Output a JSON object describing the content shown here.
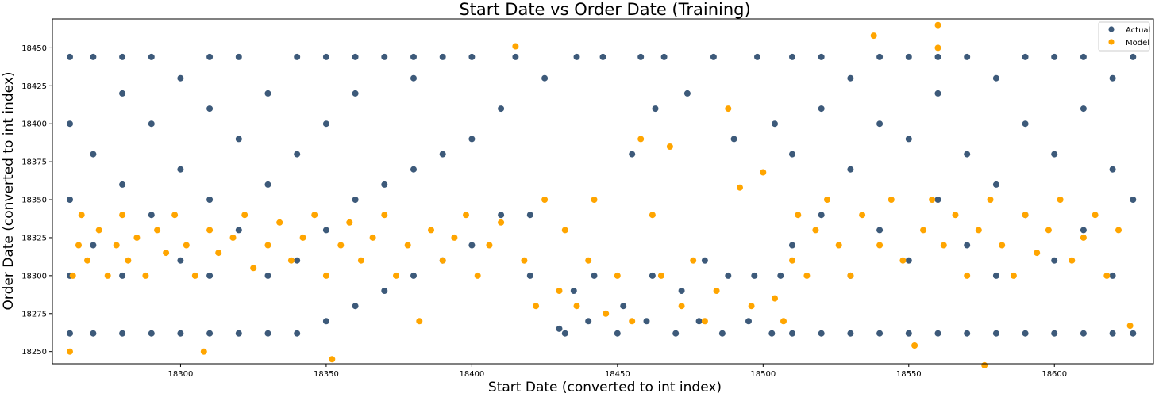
{
  "chart_data": {
    "type": "scatter",
    "title": "Start Date vs Order Date (Training)",
    "xlabel": "Start Date (converted to int index)",
    "ylabel": "Order Date (converted to int index)",
    "xlim": [
      18256,
      18634
    ],
    "ylim": [
      18242,
      18469
    ],
    "x_ticks": [
      18300,
      18350,
      18400,
      18450,
      18500,
      18550,
      18600
    ],
    "y_ticks": [
      18250,
      18275,
      18300,
      18325,
      18350,
      18375,
      18400,
      18425,
      18450
    ],
    "grid": false,
    "legend_position": "top-right",
    "series": [
      {
        "name": "Actual",
        "color": "#3d5a7a",
        "points": [
          [
            18262,
            18262
          ],
          [
            18262,
            18300
          ],
          [
            18262,
            18350
          ],
          [
            18262,
            18400
          ],
          [
            18262,
            18444
          ],
          [
            18270,
            18262
          ],
          [
            18270,
            18320
          ],
          [
            18270,
            18380
          ],
          [
            18270,
            18444
          ],
          [
            18280,
            18262
          ],
          [
            18280,
            18300
          ],
          [
            18280,
            18360
          ],
          [
            18280,
            18420
          ],
          [
            18280,
            18444
          ],
          [
            18290,
            18262
          ],
          [
            18290,
            18340
          ],
          [
            18290,
            18400
          ],
          [
            18290,
            18444
          ],
          [
            18300,
            18262
          ],
          [
            18300,
            18310
          ],
          [
            18300,
            18370
          ],
          [
            18300,
            18430
          ],
          [
            18310,
            18262
          ],
          [
            18310,
            18300
          ],
          [
            18310,
            18350
          ],
          [
            18310,
            18410
          ],
          [
            18310,
            18444
          ],
          [
            18320,
            18262
          ],
          [
            18320,
            18330
          ],
          [
            18320,
            18390
          ],
          [
            18320,
            18444
          ],
          [
            18330,
            18262
          ],
          [
            18330,
            18300
          ],
          [
            18330,
            18360
          ],
          [
            18330,
            18420
          ],
          [
            18340,
            18262
          ],
          [
            18340,
            18310
          ],
          [
            18340,
            18380
          ],
          [
            18340,
            18444
          ],
          [
            18350,
            18270
          ],
          [
            18350,
            18330
          ],
          [
            18350,
            18400
          ],
          [
            18350,
            18444
          ],
          [
            18360,
            18280
          ],
          [
            18360,
            18350
          ],
          [
            18360,
            18420
          ],
          [
            18360,
            18444
          ],
          [
            18370,
            18290
          ],
          [
            18370,
            18360
          ],
          [
            18370,
            18444
          ],
          [
            18380,
            18300
          ],
          [
            18380,
            18370
          ],
          [
            18380,
            18430
          ],
          [
            18380,
            18444
          ],
          [
            18390,
            18310
          ],
          [
            18390,
            18380
          ],
          [
            18390,
            18444
          ],
          [
            18400,
            18320
          ],
          [
            18400,
            18390
          ],
          [
            18400,
            18444
          ],
          [
            18410,
            18340
          ],
          [
            18410,
            18410
          ],
          [
            18415,
            18444
          ],
          [
            18420,
            18300
          ],
          [
            18420,
            18340
          ],
          [
            18425,
            18430
          ],
          [
            18430,
            18265
          ],
          [
            18432,
            18262
          ],
          [
            18435,
            18290
          ],
          [
            18436,
            18444
          ],
          [
            18440,
            18270
          ],
          [
            18442,
            18300
          ],
          [
            18445,
            18444
          ],
          [
            18450,
            18262
          ],
          [
            18452,
            18280
          ],
          [
            18455,
            18380
          ],
          [
            18458,
            18444
          ],
          [
            18460,
            18270
          ],
          [
            18462,
            18300
          ],
          [
            18463,
            18410
          ],
          [
            18466,
            18444
          ],
          [
            18470,
            18262
          ],
          [
            18472,
            18290
          ],
          [
            18474,
            18420
          ],
          [
            18478,
            18270
          ],
          [
            18480,
            18310
          ],
          [
            18483,
            18444
          ],
          [
            18486,
            18262
          ],
          [
            18488,
            18300
          ],
          [
            18490,
            18390
          ],
          [
            18495,
            18270
          ],
          [
            18497,
            18300
          ],
          [
            18498,
            18444
          ],
          [
            18503,
            18262
          ],
          [
            18504,
            18400
          ],
          [
            18506,
            18300
          ],
          [
            18510,
            18262
          ],
          [
            18510,
            18320
          ],
          [
            18510,
            18380
          ],
          [
            18510,
            18444
          ],
          [
            18520,
            18262
          ],
          [
            18520,
            18340
          ],
          [
            18520,
            18410
          ],
          [
            18520,
            18444
          ],
          [
            18530,
            18262
          ],
          [
            18530,
            18300
          ],
          [
            18530,
            18370
          ],
          [
            18530,
            18430
          ],
          [
            18540,
            18262
          ],
          [
            18540,
            18330
          ],
          [
            18540,
            18400
          ],
          [
            18540,
            18444
          ],
          [
            18550,
            18262
          ],
          [
            18550,
            18310
          ],
          [
            18550,
            18390
          ],
          [
            18550,
            18444
          ],
          [
            18560,
            18262
          ],
          [
            18560,
            18350
          ],
          [
            18560,
            18420
          ],
          [
            18560,
            18444
          ],
          [
            18570,
            18262
          ],
          [
            18570,
            18320
          ],
          [
            18570,
            18380
          ],
          [
            18570,
            18444
          ],
          [
            18580,
            18262
          ],
          [
            18580,
            18300
          ],
          [
            18580,
            18360
          ],
          [
            18580,
            18430
          ],
          [
            18590,
            18262
          ],
          [
            18590,
            18340
          ],
          [
            18590,
            18400
          ],
          [
            18590,
            18444
          ],
          [
            18600,
            18262
          ],
          [
            18600,
            18310
          ],
          [
            18600,
            18380
          ],
          [
            18600,
            18444
          ],
          [
            18610,
            18262
          ],
          [
            18610,
            18330
          ],
          [
            18610,
            18410
          ],
          [
            18610,
            18444
          ],
          [
            18620,
            18262
          ],
          [
            18620,
            18300
          ],
          [
            18620,
            18370
          ],
          [
            18620,
            18430
          ],
          [
            18627,
            18262
          ],
          [
            18627,
            18350
          ],
          [
            18627,
            18444
          ]
        ]
      },
      {
        "name": "Model",
        "color": "#ffa500",
        "points": [
          [
            18262,
            18250
          ],
          [
            18263,
            18300
          ],
          [
            18265,
            18320
          ],
          [
            18266,
            18340
          ],
          [
            18268,
            18310
          ],
          [
            18272,
            18330
          ],
          [
            18275,
            18300
          ],
          [
            18278,
            18320
          ],
          [
            18280,
            18340
          ],
          [
            18282,
            18310
          ],
          [
            18285,
            18325
          ],
          [
            18288,
            18300
          ],
          [
            18292,
            18330
          ],
          [
            18295,
            18315
          ],
          [
            18298,
            18340
          ],
          [
            18302,
            18320
          ],
          [
            18305,
            18300
          ],
          [
            18308,
            18250
          ],
          [
            18310,
            18330
          ],
          [
            18313,
            18315
          ],
          [
            18318,
            18325
          ],
          [
            18322,
            18340
          ],
          [
            18325,
            18305
          ],
          [
            18330,
            18320
          ],
          [
            18334,
            18335
          ],
          [
            18338,
            18310
          ],
          [
            18342,
            18325
          ],
          [
            18346,
            18340
          ],
          [
            18350,
            18300
          ],
          [
            18352,
            18245
          ],
          [
            18355,
            18320
          ],
          [
            18358,
            18335
          ],
          [
            18362,
            18310
          ],
          [
            18366,
            18325
          ],
          [
            18370,
            18340
          ],
          [
            18374,
            18300
          ],
          [
            18378,
            18320
          ],
          [
            18382,
            18270
          ],
          [
            18386,
            18330
          ],
          [
            18390,
            18310
          ],
          [
            18394,
            18325
          ],
          [
            18398,
            18340
          ],
          [
            18402,
            18300
          ],
          [
            18406,
            18320
          ],
          [
            18410,
            18335
          ],
          [
            18415,
            18451
          ],
          [
            18418,
            18310
          ],
          [
            18422,
            18280
          ],
          [
            18425,
            18350
          ],
          [
            18430,
            18290
          ],
          [
            18432,
            18330
          ],
          [
            18436,
            18280
          ],
          [
            18440,
            18310
          ],
          [
            18442,
            18350
          ],
          [
            18446,
            18275
          ],
          [
            18450,
            18300
          ],
          [
            18455,
            18270
          ],
          [
            18458,
            18390
          ],
          [
            18462,
            18340
          ],
          [
            18465,
            18300
          ],
          [
            18468,
            18385
          ],
          [
            18472,
            18280
          ],
          [
            18476,
            18310
          ],
          [
            18480,
            18270
          ],
          [
            18484,
            18290
          ],
          [
            18488,
            18410
          ],
          [
            18492,
            18358
          ],
          [
            18496,
            18280
          ],
          [
            18500,
            18368
          ],
          [
            18504,
            18285
          ],
          [
            18507,
            18270
          ],
          [
            18510,
            18310
          ],
          [
            18512,
            18340
          ],
          [
            18515,
            18300
          ],
          [
            18518,
            18330
          ],
          [
            18522,
            18350
          ],
          [
            18526,
            18320
          ],
          [
            18530,
            18300
          ],
          [
            18534,
            18340
          ],
          [
            18538,
            18458
          ],
          [
            18540,
            18320
          ],
          [
            18544,
            18350
          ],
          [
            18548,
            18310
          ],
          [
            18552,
            18254
          ],
          [
            18555,
            18330
          ],
          [
            18558,
            18350
          ],
          [
            18560,
            18465
          ],
          [
            18560,
            18450
          ],
          [
            18562,
            18320
          ],
          [
            18566,
            18340
          ],
          [
            18570,
            18300
          ],
          [
            18574,
            18330
          ],
          [
            18576,
            18241
          ],
          [
            18578,
            18350
          ],
          [
            18582,
            18320
          ],
          [
            18586,
            18300
          ],
          [
            18590,
            18340
          ],
          [
            18594,
            18315
          ],
          [
            18598,
            18330
          ],
          [
            18602,
            18350
          ],
          [
            18606,
            18310
          ],
          [
            18610,
            18325
          ],
          [
            18614,
            18340
          ],
          [
            18618,
            18300
          ],
          [
            18622,
            18330
          ],
          [
            18626,
            18267
          ]
        ]
      }
    ]
  }
}
